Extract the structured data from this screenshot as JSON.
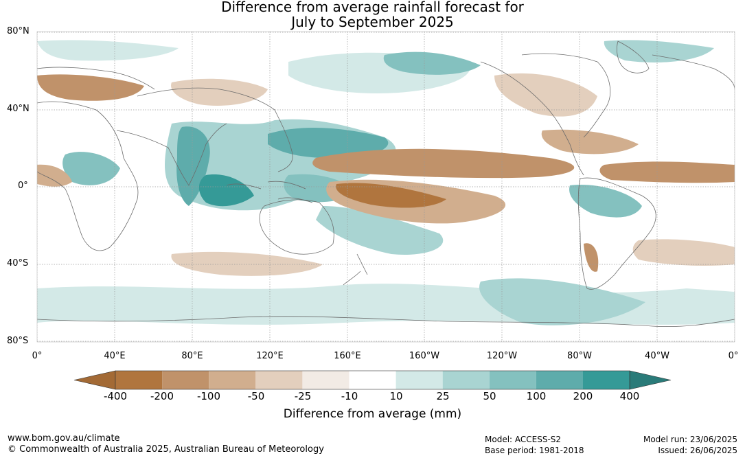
{
  "title": [
    "Difference from average rainfall forecast for",
    "July to September 2025"
  ],
  "lat_labels": [
    "80°N",
    "40°N",
    "0°",
    "40°S",
    "80°S"
  ],
  "lon_labels": [
    "0°",
    "40°E",
    "80°E",
    "120°E",
    "160°E",
    "160°W",
    "120°W",
    "80°W",
    "40°W",
    "0°"
  ],
  "colorbar": {
    "labels": [
      "-400",
      "-200",
      "-100",
      "-50",
      "-25",
      "-10",
      "10",
      "25",
      "50",
      "100",
      "200",
      "400"
    ],
    "colors": [
      "#a36a35",
      "#b0753e",
      "#c0926a",
      "#d1ae8e",
      "#e3cfbd",
      "#f2ebe5",
      "#ffffff",
      "#d3e9e7",
      "#a9d4d2",
      "#84c1bf",
      "#5eacab",
      "#359a97",
      "#2a7b79"
    ],
    "title": "Difference from average (mm)"
  },
  "map_colors": {
    "dry_strong": "#b0753e",
    "dry_mid": "#c0926a",
    "dry_light": "#d1ae8e",
    "dry_faint": "#e3cfbd",
    "dry_trace": "#f2ebe5",
    "wet_trace": "#d3e9e7",
    "wet_light": "#a9d4d2",
    "wet_mid": "#84c1bf",
    "wet_strong": "#5eacab",
    "wet_max": "#359a97",
    "coast": "#6b6b6b",
    "grid": "#9a9a9a"
  },
  "footer": {
    "url": "www.bom.gov.au/climate",
    "copyright": "© Commonwealth of Australia 2025, Australian Bureau of Meteorology",
    "model": "Model: ACCESS-S2",
    "base_period": "Base period: 1981-2018",
    "model_run": "Model run: 23/06/2025",
    "issued": "Issued: 26/06/2025"
  }
}
